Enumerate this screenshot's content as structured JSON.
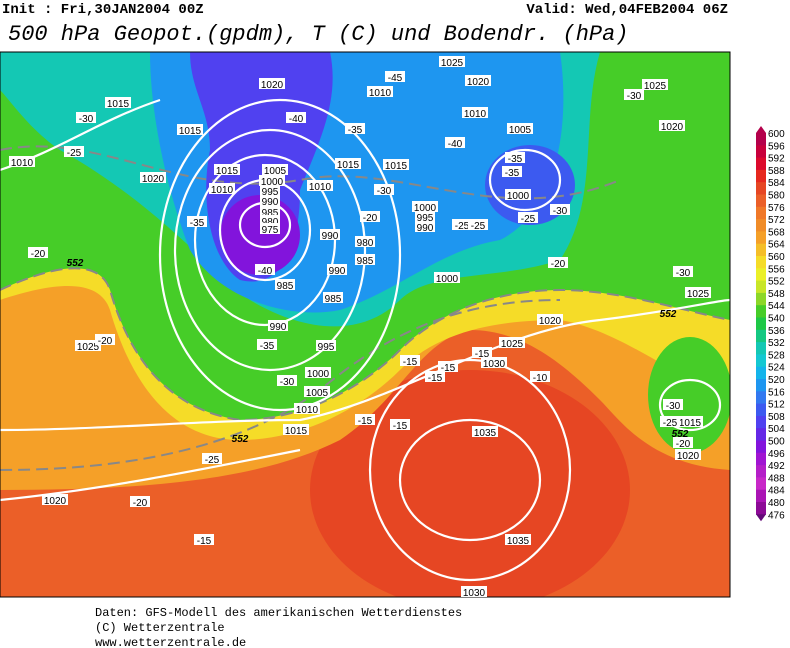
{
  "header": {
    "init": "Init : Fri,30JAN2004 00Z",
    "valid": "Valid: Wed,04FEB2004 06Z",
    "title": "500 hPa Geopot.(gpdm), T (C) und Bodendr. (hPa)"
  },
  "pressure_labels": [
    "1025",
    "1020",
    "1010",
    "1020",
    "1015",
    "1015",
    "1010",
    "1020",
    "1015",
    "1010",
    "1005",
    "1000",
    "995",
    "990",
    "985",
    "980",
    "975",
    "1010",
    "1015",
    "1015",
    "1010",
    "1005",
    "1000",
    "1000",
    "995",
    "990",
    "990",
    "980",
    "985",
    "990",
    "985",
    "985",
    "990",
    "995",
    "1000",
    "1005",
    "1010",
    "1015",
    "1000",
    "1020",
    "1025",
    "1030",
    "1035",
    "1035",
    "1030",
    "1025",
    "1020",
    "1025",
    "1025",
    "1020",
    "1015",
    "1020"
  ],
  "temperature_labels": [
    "-30",
    "-45",
    "-40",
    "-35",
    "-40",
    "-35",
    "-35",
    "-30",
    "-30",
    "-25",
    "-25",
    "-25",
    "-20",
    "-35",
    "-40",
    "-35",
    "-30",
    "-20",
    "-25",
    "-30",
    "-25",
    "-20",
    "-15",
    "-15",
    "-15",
    "-15",
    "-15",
    "-10",
    "-15",
    "-15",
    "-30",
    "-25",
    "-20",
    "-20",
    "-30",
    "-20"
  ],
  "height_labels": [
    "552",
    "552",
    "552",
    "552"
  ],
  "colorbar": {
    "labels": [
      600,
      596,
      592,
      588,
      584,
      580,
      576,
      572,
      568,
      564,
      560,
      556,
      552,
      548,
      544,
      540,
      536,
      532,
      528,
      524,
      520,
      516,
      512,
      508,
      504,
      500,
      496,
      492,
      488,
      484,
      480,
      476
    ],
    "colors": [
      "#b4004b",
      "#c8003c",
      "#dc0a2d",
      "#e6281e",
      "#e64623",
      "#eb5f28",
      "#f07828",
      "#f08c28",
      "#f5a028",
      "#f5be28",
      "#f5dc28",
      "#ebf028",
      "#c8e628",
      "#8cd728",
      "#46cd28",
      "#1ec846",
      "#14c882",
      "#14c8b4",
      "#14c8d2",
      "#14b4eb",
      "#1e96f0",
      "#3278f0",
      "#3c5af0",
      "#5041f0",
      "#6428e6",
      "#8214dc",
      "#a014d2",
      "#b41ec8",
      "#c828c8",
      "#aa14b4",
      "#8c0a96"
    ]
  },
  "footer": [
    "Daten: GFS-Modell des amerikanischen Wetterdienstes",
    "(C) Wetterzentrale",
    "www.wetterzentrale.de"
  ]
}
